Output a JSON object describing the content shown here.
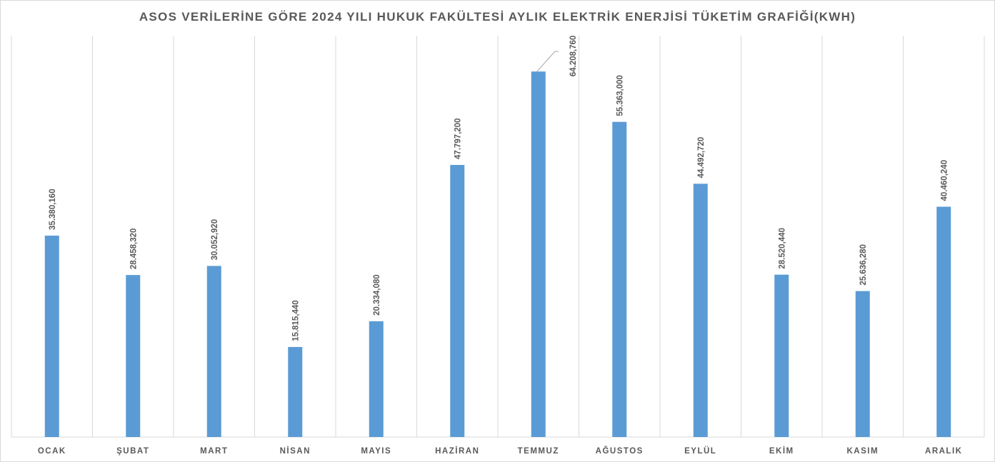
{
  "chart_data": {
    "type": "bar",
    "title": "ASOS VERİLERİNE GÖRE 2024 YILI HUKUK FAKÜLTESİ AYLIK ELEKTRİK ENERJİSİ TÜKETİM GRAFİĞİ(KWH)",
    "xlabel": "",
    "ylabel": "",
    "categories": [
      "OCAK",
      "ŞUBAT",
      "MART",
      "NİSAN",
      "MAYIS",
      "HAZİRAN",
      "TEMMUZ",
      "AĞUSTOS",
      "EYLÜL",
      "EKİM",
      "KASIM",
      "ARALIK"
    ],
    "values": [
      35380.16,
      28458.32,
      30052.92,
      15815.44,
      20334.08,
      47797.2,
      64208.76,
      55363.0,
      44492.72,
      28520.44,
      25636.28,
      40460.24
    ],
    "data_labels": [
      "35.380,160",
      "28.458,320",
      "30.052,920",
      "15.815,440",
      "20.334,080",
      "47.797,200",
      "64.208,760",
      "55.363,000",
      "44.492,720",
      "28.520,440",
      "25.636,280",
      "40.460,240"
    ],
    "ylim": [
      0,
      70500
    ],
    "grid": "vertical category separators",
    "legend": "none",
    "bar_color": "#5b9bd5"
  }
}
